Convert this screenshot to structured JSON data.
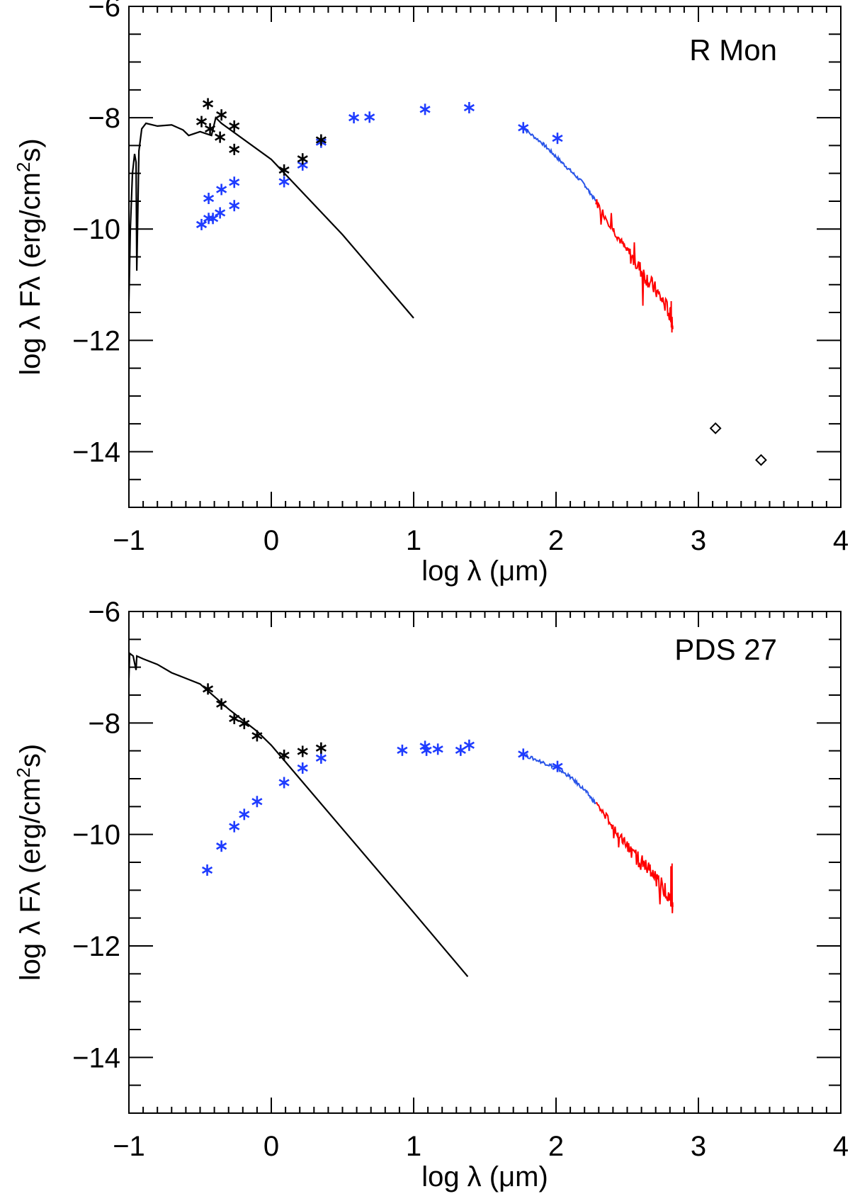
{
  "colors": {
    "photometry_dereddened": "#1f3cff",
    "photometry_observed": "#000000",
    "spectrum_short": "#2a55e8",
    "spectrum_long": "#ff0000",
    "model": "#000000"
  },
  "chart_data": [
    {
      "type": "scatter",
      "title": "R Mon",
      "xlabel": "log λ (μm)",
      "ylabel_parts": [
        "log λ Fλ  (erg/cm",
        "2",
        "s)"
      ],
      "xlim": [
        -1,
        4
      ],
      "ylim": [
        -15,
        -6
      ],
      "xticks": [
        -1,
        0,
        1,
        2,
        3,
        4
      ],
      "xtick_labels": [
        "−1",
        "0",
        "1",
        "2",
        "3",
        "4"
      ],
      "yticks": [
        -6,
        -8,
        -10,
        -12,
        -14
      ],
      "ytick_labels": [
        "−6",
        "−8",
        "−10",
        "−12",
        "−14"
      ],
      "grid": false,
      "legend": "none",
      "model": [
        [
          -1.0,
          -11.3
        ],
        [
          -0.99,
          -10.0
        ],
        [
          -0.975,
          -9.0
        ],
        [
          -0.96,
          -8.65
        ],
        [
          -0.95,
          -8.8
        ],
        [
          -0.945,
          -10.75
        ],
        [
          -0.93,
          -8.6
        ],
        [
          -0.91,
          -8.2
        ],
        [
          -0.88,
          -8.1
        ],
        [
          -0.8,
          -8.15
        ],
        [
          -0.7,
          -8.13
        ],
        [
          -0.62,
          -8.22
        ],
        [
          -0.58,
          -8.32
        ],
        [
          -0.5,
          -8.25
        ],
        [
          -0.42,
          -8.32
        ],
        [
          -0.39,
          -8.0
        ],
        [
          -0.35,
          -8.1
        ],
        [
          0.0,
          -8.75
        ],
        [
          0.5,
          -10.1
        ],
        [
          1.0,
          -11.6
        ]
      ],
      "observed": [
        [
          -0.445,
          -7.75
        ],
        [
          -0.49,
          -8.07
        ],
        [
          -0.35,
          -7.95
        ],
        [
          -0.43,
          -8.2
        ],
        [
          -0.36,
          -8.35
        ],
        [
          -0.26,
          -8.15
        ],
        [
          -0.26,
          -8.57
        ],
        [
          0.09,
          -8.94
        ],
        [
          0.22,
          -8.74
        ],
        [
          0.35,
          -8.4
        ]
      ],
      "dereddened": [
        [
          -0.44,
          -9.45
        ],
        [
          -0.35,
          -9.29
        ],
        [
          -0.26,
          -9.16
        ],
        [
          -0.26,
          -9.58
        ],
        [
          -0.49,
          -9.92
        ],
        [
          -0.44,
          -9.81
        ],
        [
          -0.41,
          -9.81
        ],
        [
          -0.36,
          -9.71
        ],
        [
          0.09,
          -9.15
        ],
        [
          0.22,
          -8.85
        ],
        [
          0.35,
          -8.44
        ],
        [
          0.58,
          -8.0
        ],
        [
          0.69,
          -7.99
        ],
        [
          1.08,
          -7.85
        ],
        [
          1.39,
          -7.82
        ],
        [
          1.77,
          -8.18
        ],
        [
          2.01,
          -8.37
        ]
      ],
      "spectrum_short": [
        [
          1.75,
          -8.15
        ],
        [
          1.9,
          -8.45
        ],
        [
          2.0,
          -8.7
        ],
        [
          2.1,
          -8.95
        ],
        [
          2.2,
          -9.2
        ],
        [
          2.28,
          -9.5
        ]
      ],
      "spectrum_long": [
        [
          2.28,
          -9.5
        ],
        [
          2.4,
          -10.0
        ],
        [
          2.5,
          -10.4
        ],
        [
          2.6,
          -10.75
        ],
        [
          2.7,
          -11.1
        ],
        [
          2.8,
          -11.5
        ],
        [
          2.82,
          -11.8
        ]
      ],
      "upper_points": [
        [
          3.12,
          -13.58
        ],
        [
          3.44,
          -14.15
        ]
      ]
    },
    {
      "type": "scatter",
      "title": "PDS 27",
      "xlabel": "log λ (μm)",
      "ylabel_parts": [
        "log λ Fλ  (erg/cm",
        "2",
        "s)"
      ],
      "xlim": [
        -1,
        4
      ],
      "ylim": [
        -15,
        -6
      ],
      "xticks": [
        -1,
        0,
        1,
        2,
        3,
        4
      ],
      "xtick_labels": [
        "−1",
        "0",
        "1",
        "2",
        "3",
        "4"
      ],
      "yticks": [
        -6,
        -8,
        -10,
        -12,
        -14
      ],
      "ytick_labels": [
        "−6",
        "−8",
        "−10",
        "−12",
        "−14"
      ],
      "grid": false,
      "legend": "none",
      "model": [
        [
          -1.0,
          -7.2
        ],
        [
          -0.995,
          -6.75
        ],
        [
          -0.97,
          -6.8
        ],
        [
          -0.95,
          -7.05
        ],
        [
          -0.945,
          -6.8
        ],
        [
          -0.9,
          -6.85
        ],
        [
          -0.8,
          -6.95
        ],
        [
          -0.7,
          -7.1
        ],
        [
          -0.6,
          -7.2
        ],
        [
          -0.5,
          -7.3
        ],
        [
          -0.3,
          -7.75
        ],
        [
          -0.1,
          -8.15
        ],
        [
          0.0,
          -8.4
        ],
        [
          0.5,
          -9.9
        ],
        [
          1.0,
          -11.4
        ],
        [
          1.38,
          -12.55
        ]
      ],
      "observed": [
        [
          -0.445,
          -7.39
        ],
        [
          -0.35,
          -7.66
        ],
        [
          -0.26,
          -7.92
        ],
        [
          -0.19,
          -8.01
        ],
        [
          -0.1,
          -8.23
        ],
        [
          0.09,
          -8.58
        ],
        [
          0.22,
          -8.51
        ],
        [
          0.35,
          -8.45
        ]
      ],
      "dereddened": [
        [
          -0.45,
          -10.64
        ],
        [
          -0.35,
          -10.21
        ],
        [
          -0.26,
          -9.86
        ],
        [
          -0.19,
          -9.64
        ],
        [
          -0.1,
          -9.41
        ],
        [
          0.09,
          -9.07
        ],
        [
          0.22,
          -8.81
        ],
        [
          0.35,
          -8.63
        ],
        [
          0.92,
          -8.49
        ],
        [
          1.08,
          -8.42
        ],
        [
          1.09,
          -8.49
        ],
        [
          1.17,
          -8.47
        ],
        [
          1.33,
          -8.49
        ],
        [
          1.39,
          -8.4
        ],
        [
          1.77,
          -8.56
        ],
        [
          2.01,
          -8.78
        ]
      ],
      "spectrum_short": [
        [
          1.75,
          -8.55
        ],
        [
          1.9,
          -8.7
        ],
        [
          2.0,
          -8.8
        ],
        [
          2.1,
          -8.97
        ],
        [
          2.2,
          -9.2
        ],
        [
          2.28,
          -9.45
        ]
      ],
      "spectrum_long": [
        [
          2.28,
          -9.45
        ],
        [
          2.4,
          -9.85
        ],
        [
          2.5,
          -10.2
        ],
        [
          2.6,
          -10.5
        ],
        [
          2.7,
          -10.8
        ],
        [
          2.8,
          -11.1
        ],
        [
          2.82,
          -11.3
        ]
      ],
      "upper_points": []
    }
  ]
}
